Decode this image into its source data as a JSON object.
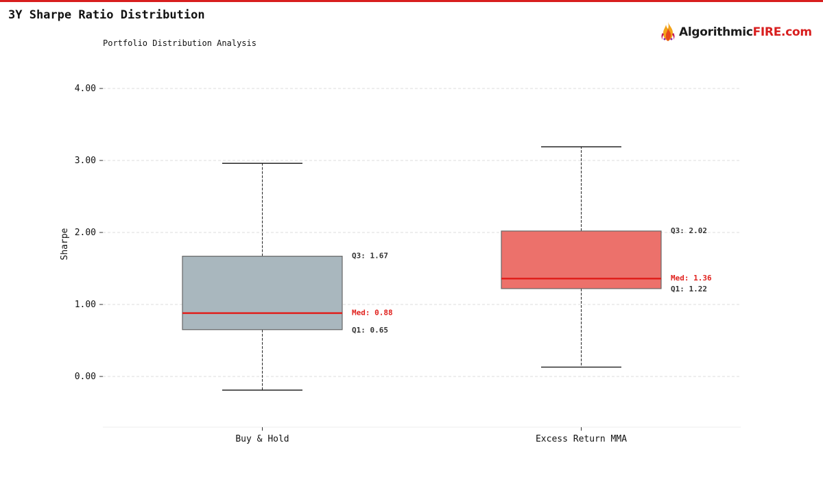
{
  "header": {
    "title": "3Y Sharpe Ratio Distribution",
    "subtitle": "Portfolio Distribution Analysis"
  },
  "logo": {
    "icon": "flame-icon",
    "text_main": "Algorithmic",
    "text_accent": "FIRE.com"
  },
  "colors": {
    "accent": "#d81e1e",
    "grid": "#dddddd",
    "axis": "#333333",
    "median": "#e0201c",
    "annotation": "#333333"
  },
  "chart_data": {
    "type": "box",
    "title": "3Y Sharpe Ratio Distribution",
    "subtitle": "Portfolio Distribution Analysis",
    "ylabel": "Sharpe",
    "xlabel": "",
    "ylim": [
      -0.71,
      4.0
    ],
    "yticks": [
      0.0,
      1.0,
      2.0,
      3.0,
      4.0
    ],
    "ytick_labels": [
      "0.00",
      "1.00",
      "2.00",
      "3.00",
      "4.00"
    ],
    "grid": true,
    "categories": [
      "Buy & Hold",
      "Excess Return MMA"
    ],
    "boxes": [
      {
        "name": "Buy & Hold",
        "whisker_low": -0.19,
        "q1": 0.65,
        "median": 0.88,
        "q3": 1.67,
        "whisker_high": 2.96,
        "color": "#a9b7be",
        "label_q1": "Q1: 0.65",
        "label_med": "Med: 0.88",
        "label_q3": "Q3: 1.67"
      },
      {
        "name": "Excess Return MMA",
        "whisker_low": 0.13,
        "q1": 1.22,
        "median": 1.36,
        "q3": 2.02,
        "whisker_high": 3.19,
        "color": "#ec716b",
        "label_q1": "Q1: 1.22",
        "label_med": "Med: 1.36",
        "label_q3": "Q3: 2.02"
      }
    ]
  }
}
